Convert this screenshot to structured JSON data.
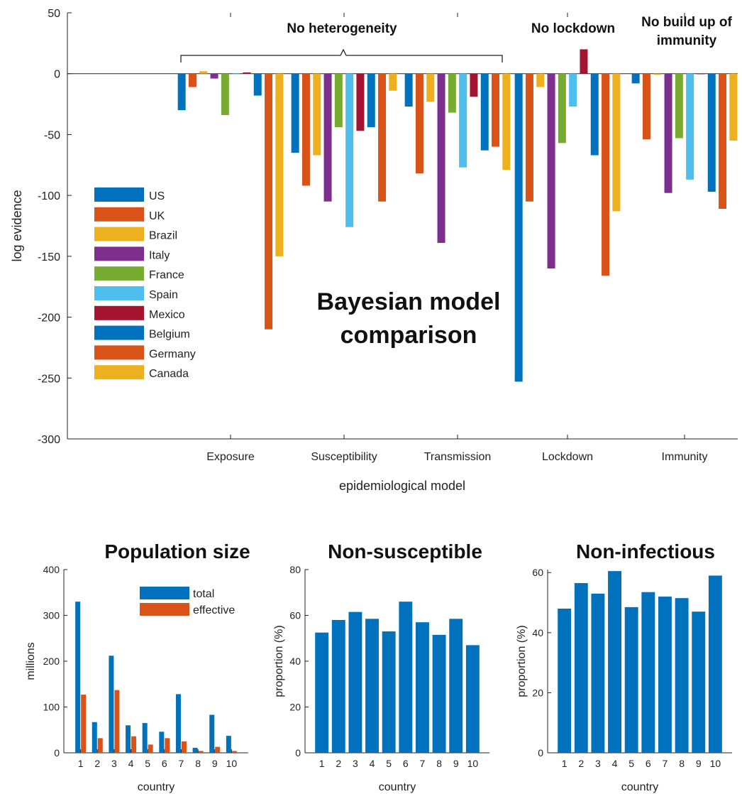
{
  "chart_data": [
    {
      "type": "bar",
      "xlabel": "epidemiological model",
      "ylabel": "log evidence",
      "ylim": [
        -300,
        50
      ],
      "yticks": [
        50,
        0,
        -50,
        -100,
        -150,
        -200,
        -250,
        -300
      ],
      "categories": [
        "Exposure",
        "Susceptibility",
        "Transmission",
        "Lockdown",
        "Immunity"
      ],
      "series": [
        {
          "name": "US",
          "color": "#0072BD",
          "values": [
            -30,
            -65,
            -27,
            -253,
            -8
          ]
        },
        {
          "name": "UK",
          "color": "#D95319",
          "values": [
            -11,
            -92,
            -82,
            -105,
            -54
          ]
        },
        {
          "name": "Brazil",
          "color": "#EDB120",
          "values": [
            2,
            -67,
            -23,
            -11,
            -1
          ]
        },
        {
          "name": "Italy",
          "color": "#7E2F8E",
          "values": [
            -4,
            -105,
            -139,
            -160,
            -98
          ]
        },
        {
          "name": "France",
          "color": "#77AC30",
          "values": [
            -34,
            -44,
            -32,
            -57,
            -53
          ]
        },
        {
          "name": "Spain",
          "color": "#4DBEEE",
          "values": [
            0,
            -126,
            -77,
            -27,
            -87
          ]
        },
        {
          "name": "Mexico",
          "color": "#A2142F",
          "values": [
            1,
            -47,
            -19,
            20,
            0
          ]
        },
        {
          "name": "Belgium",
          "color": "#0072BD",
          "values": [
            -18,
            -44,
            -63,
            -67,
            -97
          ]
        },
        {
          "name": "Germany",
          "color": "#D95319",
          "values": [
            -210,
            -105,
            -60,
            -166,
            -111
          ]
        },
        {
          "name": "Canada",
          "color": "#EDB120",
          "values": [
            -150,
            -14,
            -79,
            -113,
            -55
          ]
        }
      ],
      "legend_position": "left",
      "annotations": {
        "bracket_label": "No heterogeneity",
        "lockdown_label": "No lockdown",
        "immunity_label_line1": "No build up of",
        "immunity_label_line2": "immunity",
        "center_line1": "Bayesian model",
        "center_line2": "comparison"
      }
    },
    {
      "type": "bar",
      "title": "Population size",
      "xlabel": "country",
      "ylabel": "millions",
      "ylim": [
        0,
        400
      ],
      "yticks": [
        0,
        100,
        200,
        300,
        400
      ],
      "categories": [
        "1",
        "2",
        "3",
        "4",
        "5",
        "6",
        "7",
        "8",
        "9",
        "10"
      ],
      "series": [
        {
          "name": "total",
          "color": "#0072BD",
          "values": [
            330,
            67,
            212,
            60,
            65,
            46,
            128,
            11,
            83,
            37
          ]
        },
        {
          "name": "effective",
          "color": "#D95319",
          "values": [
            127,
            32,
            137,
            36,
            18,
            32,
            25,
            4,
            13,
            4
          ]
        }
      ],
      "legend_position": "top-right"
    },
    {
      "type": "bar",
      "title": "Non-susceptible",
      "xlabel": "country",
      "ylabel": "proportion (%)",
      "ylim": [
        0,
        80
      ],
      "yticks": [
        0,
        20,
        40,
        60,
        80
      ],
      "categories": [
        "1",
        "2",
        "3",
        "4",
        "5",
        "6",
        "7",
        "8",
        "9",
        "10"
      ],
      "series": [
        {
          "color": "#0072BD",
          "values": [
            52.5,
            58,
            61.5,
            58.5,
            53,
            66,
            57,
            51.5,
            58.5,
            47
          ]
        }
      ]
    },
    {
      "type": "bar",
      "title": "Non-infectious",
      "xlabel": "country",
      "ylabel": "proportion (%)",
      "ylim": [
        0,
        61
      ],
      "yticks": [
        0,
        20,
        40,
        60
      ],
      "categories": [
        "1",
        "2",
        "3",
        "4",
        "5",
        "6",
        "7",
        "8",
        "9",
        "10"
      ],
      "series": [
        {
          "color": "#0072BD",
          "values": [
            48,
            56.5,
            53,
            60.5,
            48.5,
            53.5,
            52,
            51.5,
            47,
            59
          ]
        }
      ]
    }
  ]
}
